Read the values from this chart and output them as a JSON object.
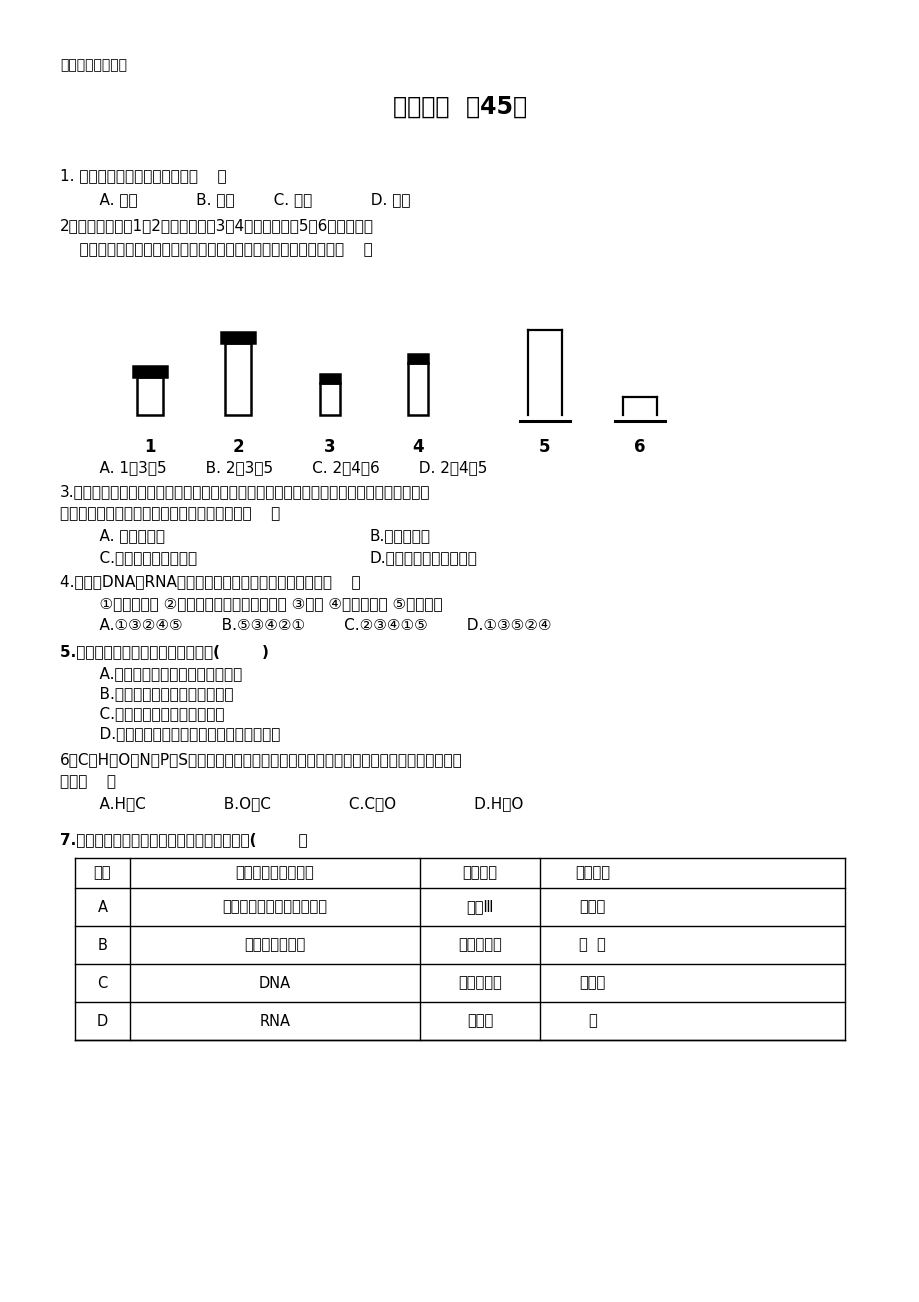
{
  "bg_color": "#ffffff",
  "page_width": 9.2,
  "page_height": 13.02,
  "header": "生物基础知识复习",
  "title": "生物精练  （45）",
  "q1": "1. 地球上最基本的生命系统是（    ）",
  "q1_options": "    A. 细胞            B. 组织        C. 器官            D. 系统",
  "q2_line1": "2．如下图所示，1、2为物镜长度，3、4为目镜长度；5、6为观察时物",
  "q2_line2": "    镜与切片的距离。欲获得观察到的细胞数目最少，其正确组合是（    ）",
  "q2_options": "    A. 1、3、5        B. 2、3、5        C. 2、4、6        D. 2、4、5",
  "q3_line1": "3.在显微镜下观察洋葱表皮细胞，调节细准焦螺旋，看到同一视野中，有的地方物像清晰，",
  "q3_line2": "有的地方物像不清晰，产生这种现象的原因是（    ）",
  "q3_A": "    A. 显微镜坏了",
  "q3_B": "B.光源有变化",
  "q3_C": "    C.细准焦螺旋转动太快",
  "q3_D": "D.洋葱标本的厚薄不均匀",
  "q4_line1": "4.「观察DNA和RNA在细胞中的分布」的实验操作顺序是（    ）",
  "q4_line2": "    ①取细胞制片 ②用吠罗红甲基綦染色剂染色 ③水解 ④盖上盖玻片 ⑤冲洗涂片",
  "q4_options": "    A.①③②④⑤        B.⑤③④②①        C.②③④①⑤        D.①③⑤②④",
  "q5": "5.下列哪项不是细胞学说的主要内容(        )",
  "q5_A": "    A.一切动植物由细胞及其产物构成",
  "q5_B": "    B.细胞是生物体相对独立的单位",
  "q5_C": "    C.新细胞可以从老细胞中产生",
  "q5_D": "    D.细胞分为细胞质、细胞核、细胞膜三部分",
  "q6_line1": "6．C、H、O、N、P、S等元素是组成生物体的主要元素，其中数量最多和含量最多的元素依",
  "q6_line2": "次是（    ）",
  "q6_options": "    A.H、C                B.O、C                C.C、O                D.H、O",
  "q7": "7.下表是关于物质检测的内容，其中正确的是(        ）",
  "table_headers": [
    "选项",
    "待检测的物质或结构",
    "使用试剂",
    "呼现颜色"
  ],
  "table_rows": [
    [
      "A",
      "人口腔上皮细胞中的线粒体",
      "苏丹Ⅲ",
      "橘黄色"
    ],
    [
      "B",
      "马铃薯中的淣粉",
      "双缩脿试剂",
      "紫  色"
    ],
    [
      "C",
      "DNA",
      "健那綦染液",
      "蓝綦色"
    ],
    [
      "D",
      "RNA",
      "吠罗红",
      "红"
    ]
  ]
}
